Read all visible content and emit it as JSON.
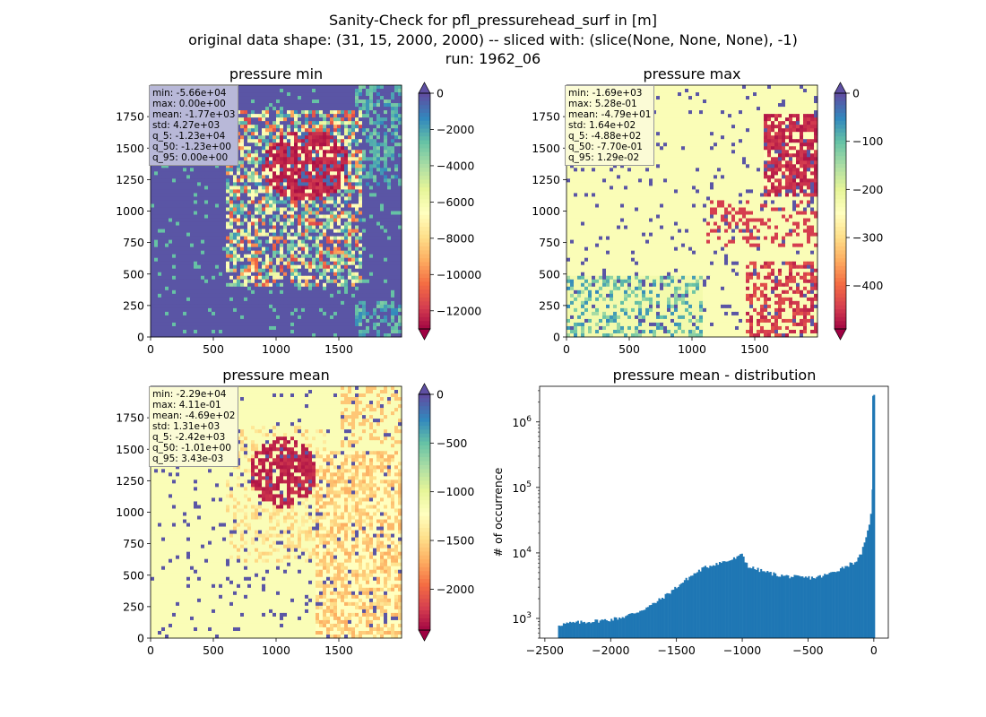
{
  "suptitle": {
    "line1": "Sanity-Check for pfl_pressurehead_surf in [m]",
    "line2": "original data shape: (31, 15, 2000, 2000) -- sliced with: (slice(None, None, None), -1)",
    "line3": "run: 1962_06"
  },
  "chart_data": [
    {
      "type": "heatmap",
      "title": "pressure min",
      "x_ticks": [
        "0",
        "500",
        "1000",
        "1500"
      ],
      "y_ticks": [
        "0",
        "250",
        "500",
        "750",
        "1000",
        "1250",
        "1500",
        "1750"
      ],
      "xlim": [
        0,
        2000
      ],
      "ylim": [
        0,
        2000
      ],
      "colormap": "Spectral",
      "colorbar": {
        "range": [
          -13000,
          0
        ],
        "extend": "both",
        "ticks": [
          "0",
          "−2000",
          "−4000",
          "−6000",
          "−8000",
          "−10000",
          "−12000"
        ],
        "tick_values": [
          0,
          -2000,
          -4000,
          -6000,
          -8000,
          -10000,
          -12000
        ]
      },
      "stats": [
        "min: -5.66e+04",
        "max: 0.00e+00",
        "mean: -1.77e+03",
        "std: 4.27e+03",
        "q_5: -1.23e+04",
        "q_50: -1.23e+00",
        "q_95: 0.00e+00"
      ],
      "stats_box_color": "#b8b8d8"
    },
    {
      "type": "heatmap",
      "title": "pressure max",
      "x_ticks": [
        "0",
        "500",
        "1000",
        "1500"
      ],
      "y_ticks": [
        "0",
        "250",
        "500",
        "750",
        "1000",
        "1250",
        "1500",
        "1750"
      ],
      "xlim": [
        0,
        2000
      ],
      "ylim": [
        0,
        2000
      ],
      "colormap": "Spectral",
      "colorbar": {
        "range": [
          -490,
          0
        ],
        "extend": "both",
        "ticks": [
          "0",
          "−100",
          "−200",
          "−300",
          "−400"
        ],
        "tick_values": [
          0,
          -100,
          -200,
          -300,
          -400
        ]
      },
      "stats": [
        "min: -1.69e+03",
        "max: 5.28e-01",
        "mean: -4.79e+01",
        "std: 1.64e+02",
        "q_5: -4.88e+02",
        "q_50: -7.70e-01",
        "q_95: 1.29e-02"
      ],
      "stats_box_color": "#fbfbd6"
    },
    {
      "type": "heatmap",
      "title": "pressure mean",
      "x_ticks": [
        "0",
        "500",
        "1000",
        "1500"
      ],
      "y_ticks": [
        "0",
        "250",
        "500",
        "750",
        "1000",
        "1250",
        "1500",
        "1750"
      ],
      "xlim": [
        0,
        2000
      ],
      "ylim": [
        0,
        2000
      ],
      "colormap": "Spectral",
      "colorbar": {
        "range": [
          -2420,
          0
        ],
        "extend": "both",
        "ticks": [
          "0",
          "−500",
          "−1000",
          "−1500",
          "−2000"
        ],
        "tick_values": [
          0,
          -500,
          -1000,
          -1500,
          -2000
        ]
      },
      "stats": [
        "min: -2.29e+04",
        "max: 4.11e-01",
        "mean: -4.69e+02",
        "std: 1.31e+03",
        "q_5: -2.42e+03",
        "q_50: -1.01e+00",
        "q_95: 3.43e-03"
      ],
      "stats_box_color": "#fbfbd6"
    },
    {
      "type": "bar",
      "title": "pressure mean - distribution",
      "ylabel": "# of occurrence",
      "xlabel": "",
      "yscale": "log",
      "xlim": [
        -2540,
        110
      ],
      "ylim": [
        500,
        3500000
      ],
      "x_ticks": [
        "−2500",
        "−2000",
        "−1500",
        "−1000",
        "−500",
        "0"
      ],
      "x_tick_values": [
        -2500,
        -2000,
        -1500,
        -1000,
        -500,
        0
      ],
      "y_ticks": [
        {
          "base": "10",
          "exp": "3"
        },
        {
          "base": "10",
          "exp": "4"
        },
        {
          "base": "10",
          "exp": "5"
        },
        {
          "base": "10",
          "exp": "6"
        }
      ],
      "y_tick_values": [
        1000,
        10000,
        100000,
        1000000
      ],
      "bar_color": "#1f77b4",
      "x": [
        -2400,
        -2300,
        -2200,
        -2100,
        -2000,
        -1900,
        -1800,
        -1700,
        -1600,
        -1500,
        -1400,
        -1300,
        -1200,
        -1100,
        -1020,
        -1000,
        -980,
        -950,
        -900,
        -850,
        -800,
        -750,
        -700,
        -650,
        -600,
        -550,
        -500,
        -450,
        -400,
        -350,
        -300,
        -250,
        -200,
        -150,
        -120,
        -100,
        -80,
        -60,
        -40,
        -20,
        -10,
        -5,
        0
      ],
      "values": [
        800,
        850,
        880,
        920,
        960,
        1060,
        1250,
        1550,
        2100,
        3000,
        4300,
        5800,
        6900,
        7600,
        8800,
        10000,
        7700,
        6100,
        5700,
        5300,
        5000,
        4700,
        4500,
        4400,
        4300,
        4200,
        4200,
        4200,
        4400,
        4700,
        5200,
        5800,
        6500,
        7200,
        8000,
        9500,
        12000,
        16000,
        24000,
        45000,
        90000,
        170000,
        2500000
      ]
    }
  ]
}
